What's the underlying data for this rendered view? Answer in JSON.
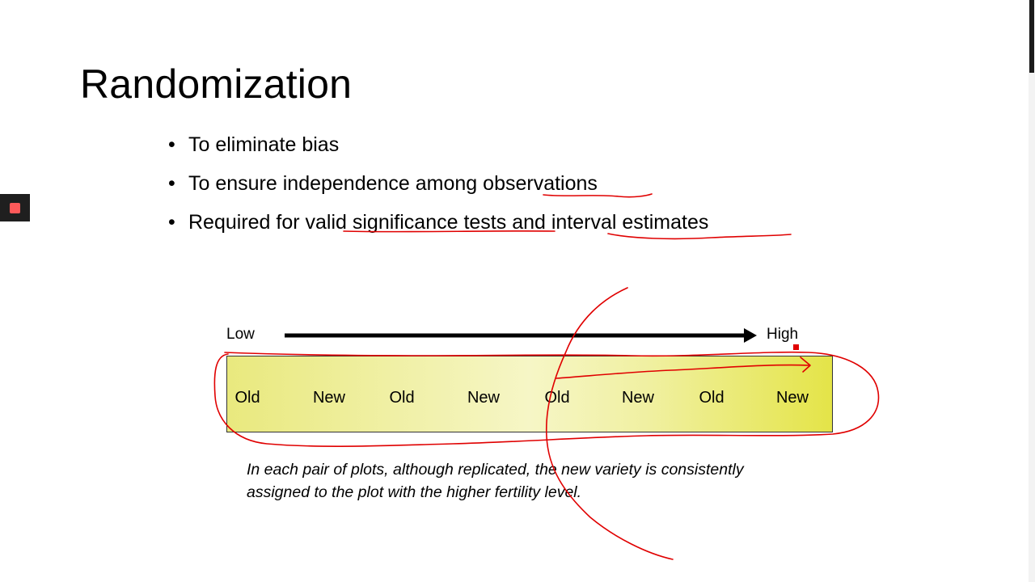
{
  "slide": {
    "title": "Randomization",
    "bullets": [
      "To eliminate bias",
      "To ensure independence among observations",
      "Required for valid significance tests and interval estimates"
    ]
  },
  "gradient": {
    "low_label": "Low",
    "high_label": "High",
    "plots": [
      "Old",
      "New",
      "Old",
      "New",
      "Old",
      "New",
      "Old",
      "New"
    ]
  },
  "caption": {
    "line1": "In each pair of plots, although replicated, the new variety is consistently",
    "line2": "assigned to the plot with the higher fertility level."
  },
  "colors": {
    "annotation_ink": "#e00000",
    "field_light": "#f6f6c6",
    "field_dark": "#e4e448",
    "record_button": "#ff5a5a"
  },
  "icons": {
    "record": "record-stop-icon",
    "arrow": "arrow-right-icon"
  }
}
